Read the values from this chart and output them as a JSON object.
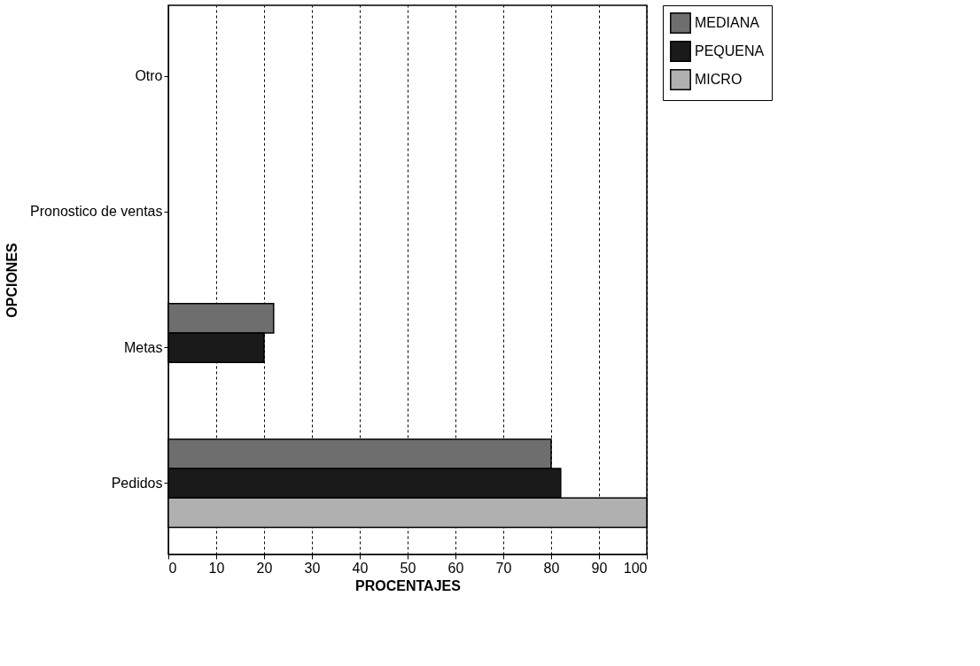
{
  "chart_data": {
    "type": "bar",
    "orientation": "horizontal",
    "xlabel": "PROCENTAJES",
    "ylabel": "OPCIONES",
    "categories": [
      "Otro",
      "Pronostico de ventas",
      "Metas",
      "Pedidos"
    ],
    "series": [
      {
        "name": "MEDIANA",
        "color": "#6e6e6e",
        "values": [
          0,
          0,
          22,
          80
        ]
      },
      {
        "name": "PEQUENA",
        "color": "#1a1a1a",
        "values": [
          0,
          0,
          20,
          82
        ]
      },
      {
        "name": "MICRO",
        "color": "#b0b0b0",
        "values": [
          0,
          0,
          0,
          100
        ]
      }
    ],
    "xlim": [
      0,
      100
    ],
    "xticks": [
      0,
      10,
      20,
      30,
      40,
      50,
      60,
      70,
      80,
      90,
      100
    ],
    "grid": "x",
    "legend": "top right"
  }
}
